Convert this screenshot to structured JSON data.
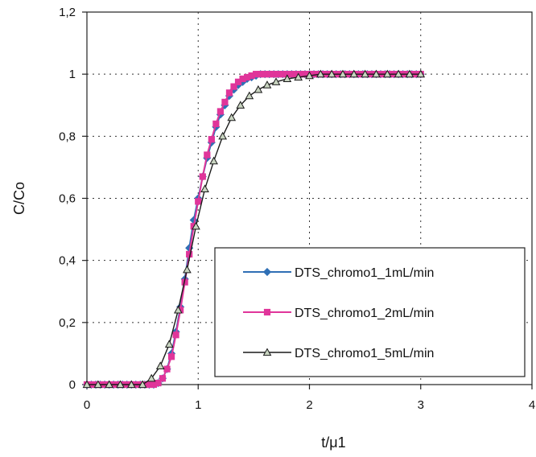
{
  "chart_data": {
    "type": "line",
    "xlabel": "t/μ1",
    "ylabel": "C/Co",
    "xlim": [
      0,
      4
    ],
    "ylim": [
      0,
      1.2
    ],
    "x_ticks": [
      0,
      1,
      2,
      3,
      4
    ],
    "y_ticks": [
      0,
      0.2,
      0.4,
      0.6,
      0.8,
      1,
      1.2
    ],
    "x_tick_labels": [
      "0",
      "1",
      "2",
      "3",
      "4"
    ],
    "y_tick_labels": [
      "0",
      "0,2",
      "0,4",
      "0,6",
      "0,8",
      "1",
      "1,2"
    ],
    "grid": "dotted",
    "legend": {
      "position": "bottom-right",
      "entries": [
        "DTS_chromo1_1mL/min",
        "DTS_chromo1_2mL/min",
        "DTS_chromo1_5mL/min"
      ]
    },
    "series": [
      {
        "name": "DTS_chromo1_1mL/min",
        "color": "#2f6fb5",
        "marker": "diamond",
        "x": [
          0,
          0.04,
          0.08,
          0.12,
          0.16,
          0.2,
          0.24,
          0.28,
          0.32,
          0.36,
          0.4,
          0.44,
          0.48,
          0.52,
          0.56,
          0.6,
          0.64,
          0.68,
          0.72,
          0.76,
          0.8,
          0.84,
          0.88,
          0.92,
          0.96,
          1.0,
          1.04,
          1.08,
          1.12,
          1.16,
          1.2,
          1.24,
          1.28,
          1.32,
          1.36,
          1.4,
          1.44,
          1.48,
          1.52,
          1.56,
          1.6,
          1.64,
          1.68,
          1.72,
          1.76,
          1.8,
          1.84,
          1.88,
          1.92,
          1.96,
          2.0,
          2.04,
          2.08,
          2.12,
          2.16,
          2.2,
          2.24,
          2.28,
          2.32,
          2.36,
          2.4,
          2.44,
          2.48,
          2.52,
          2.56,
          2.6,
          2.64,
          2.68,
          2.72,
          2.76,
          2.8,
          2.84,
          2.88,
          2.92,
          2.96,
          3.0
        ],
        "y": [
          0,
          0,
          0,
          0,
          0,
          0,
          0,
          0,
          0,
          0,
          0,
          0,
          0,
          0,
          0,
          0,
          0.005,
          0.02,
          0.05,
          0.1,
          0.17,
          0.25,
          0.34,
          0.44,
          0.53,
          0.6,
          0.67,
          0.73,
          0.78,
          0.83,
          0.87,
          0.9,
          0.93,
          0.95,
          0.965,
          0.975,
          0.985,
          0.99,
          0.995,
          1,
          1,
          1,
          1,
          1,
          1,
          1,
          1,
          1,
          1,
          1,
          1,
          1,
          1,
          1,
          1,
          1,
          1,
          1,
          1,
          1,
          1,
          1,
          1,
          1,
          1,
          1,
          1,
          1,
          1,
          1,
          1,
          1,
          1,
          1,
          1,
          1
        ]
      },
      {
        "name": "DTS_chromo1_2mL/min",
        "color": "#e0359a",
        "marker": "square",
        "x": [
          0,
          0.04,
          0.08,
          0.12,
          0.16,
          0.2,
          0.24,
          0.28,
          0.32,
          0.36,
          0.4,
          0.44,
          0.48,
          0.52,
          0.56,
          0.6,
          0.64,
          0.68,
          0.72,
          0.76,
          0.8,
          0.84,
          0.88,
          0.92,
          0.96,
          1.0,
          1.04,
          1.08,
          1.12,
          1.16,
          1.2,
          1.24,
          1.28,
          1.32,
          1.36,
          1.4,
          1.44,
          1.48,
          1.52,
          1.56,
          1.6,
          1.64,
          1.68,
          1.72,
          1.76,
          1.8,
          1.84,
          1.88,
          1.92,
          1.96,
          2.0,
          2.04,
          2.08,
          2.12,
          2.16,
          2.2,
          2.24,
          2.28,
          2.32,
          2.36,
          2.4,
          2.44,
          2.48,
          2.52,
          2.56,
          2.6,
          2.64,
          2.68,
          2.72,
          2.76,
          2.8,
          2.84,
          2.88,
          2.92,
          2.96,
          3.0
        ],
        "y": [
          0,
          0,
          0,
          0,
          0,
          0,
          0,
          0,
          0,
          0,
          0,
          0,
          0,
          0,
          0,
          0,
          0.005,
          0.02,
          0.05,
          0.09,
          0.16,
          0.24,
          0.33,
          0.42,
          0.51,
          0.59,
          0.67,
          0.74,
          0.79,
          0.84,
          0.88,
          0.91,
          0.94,
          0.96,
          0.975,
          0.985,
          0.99,
          0.995,
          1,
          1,
          1,
          1,
          1,
          1,
          1,
          1,
          1,
          1,
          1,
          1,
          1,
          1,
          1,
          1,
          1,
          1,
          1,
          1,
          1,
          1,
          1,
          1,
          1,
          1,
          1,
          1,
          1,
          1,
          1,
          1,
          1,
          1,
          1,
          1,
          1,
          1
        ]
      },
      {
        "name": "DTS_chromo1_5mL/min",
        "color": "#1a1a1a",
        "marker": "triangle",
        "x": [
          0,
          0.1,
          0.2,
          0.3,
          0.4,
          0.5,
          0.58,
          0.66,
          0.74,
          0.82,
          0.9,
          0.98,
          1.06,
          1.14,
          1.22,
          1.3,
          1.38,
          1.46,
          1.54,
          1.62,
          1.7,
          1.8,
          1.9,
          2.0,
          2.1,
          2.2,
          2.3,
          2.4,
          2.5,
          2.6,
          2.7,
          2.8,
          2.9,
          3.0
        ],
        "y": [
          0,
          0,
          0,
          0,
          0,
          0,
          0.02,
          0.06,
          0.13,
          0.24,
          0.37,
          0.51,
          0.63,
          0.72,
          0.8,
          0.86,
          0.9,
          0.93,
          0.95,
          0.965,
          0.975,
          0.985,
          0.99,
          0.995,
          1,
          1,
          1,
          1,
          1,
          1,
          1,
          1,
          1,
          1
        ]
      }
    ]
  }
}
